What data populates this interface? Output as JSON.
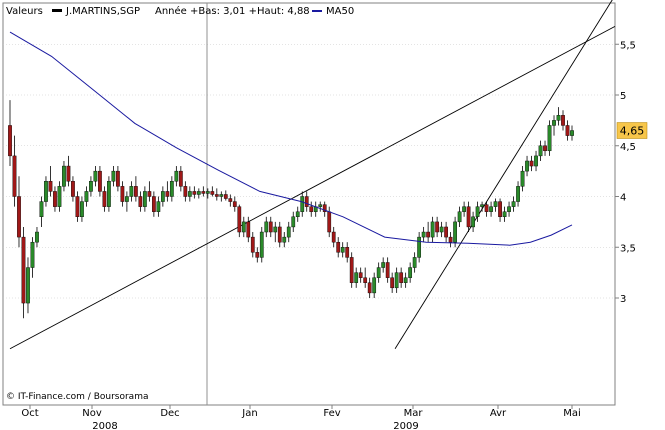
{
  "legend": {
    "label_valeurs": "Valeurs",
    "ticker": "J.MARTINS,SGP",
    "range_text": "Année +Bas: 3,01 +Haut: 4,88",
    "ma_label": "MA50"
  },
  "credit": "© IT-Finance.com / Boursorama",
  "last_price_label": "4,65",
  "colors": {
    "up": "#2a8a2a",
    "down": "#a01818",
    "ma": "#1a1aa0",
    "bg": "#ffffff",
    "price_badge": "#f7c64a",
    "grid": "#c8c8c8"
  },
  "chart_data": {
    "type": "candlestick",
    "ylim": [
      2.6,
      5.8
    ],
    "yticks": [
      3,
      3.5,
      4,
      4.5,
      5,
      5.5
    ],
    "ytick_labels": [
      "3",
      "3,5",
      "4",
      "4,5",
      "5",
      "5,5"
    ],
    "months": [
      "Oct",
      "Nov",
      "Dec",
      "Jan",
      "Fev",
      "Mar",
      "Avr",
      "Mai"
    ],
    "years": [
      "2008",
      "2009"
    ],
    "last_price": 4.65,
    "ohlc": [
      [
        4.7,
        4.95,
        4.3,
        4.4
      ],
      [
        4.4,
        4.6,
        3.9,
        4.0
      ],
      [
        4.0,
        4.2,
        3.5,
        3.6
      ],
      [
        3.6,
        3.7,
        2.8,
        2.95
      ],
      [
        2.95,
        3.4,
        2.85,
        3.3
      ],
      [
        3.3,
        3.6,
        3.2,
        3.55
      ],
      [
        3.55,
        3.7,
        3.5,
        3.65
      ],
      [
        3.8,
        4.0,
        3.7,
        3.95
      ],
      [
        3.95,
        4.2,
        3.9,
        4.15
      ],
      [
        4.15,
        4.3,
        4.0,
        4.05
      ],
      [
        4.05,
        4.1,
        3.85,
        3.9
      ],
      [
        3.9,
        4.15,
        3.85,
        4.1
      ],
      [
        4.1,
        4.35,
        4.05,
        4.3
      ],
      [
        4.3,
        4.4,
        4.1,
        4.15
      ],
      [
        4.15,
        4.2,
        3.95,
        4.0
      ],
      [
        4.0,
        4.05,
        3.75,
        3.8
      ],
      [
        3.8,
        4.0,
        3.75,
        3.95
      ],
      [
        3.95,
        4.1,
        3.9,
        4.05
      ],
      [
        4.05,
        4.2,
        4.0,
        4.15
      ],
      [
        4.15,
        4.3,
        4.1,
        4.25
      ],
      [
        4.25,
        4.3,
        4.0,
        4.05
      ],
      [
        4.05,
        4.1,
        3.85,
        3.9
      ],
      [
        3.9,
        4.2,
        3.85,
        4.15
      ],
      [
        4.15,
        4.3,
        4.1,
        4.25
      ],
      [
        4.25,
        4.3,
        4.05,
        4.1
      ],
      [
        4.1,
        4.15,
        3.9,
        3.95
      ],
      [
        3.95,
        4.05,
        3.85,
        4.0
      ],
      [
        4.0,
        4.15,
        3.95,
        4.1
      ],
      [
        4.1,
        4.2,
        3.95,
        4.0
      ],
      [
        4.0,
        4.05,
        3.85,
        3.9
      ],
      [
        3.9,
        4.1,
        3.85,
        4.05
      ],
      [
        4.05,
        4.15,
        3.95,
        4.0
      ],
      [
        4.0,
        4.05,
        3.8,
        3.85
      ],
      [
        3.85,
        4.0,
        3.8,
        3.95
      ],
      [
        3.95,
        4.1,
        3.9,
        4.05
      ],
      [
        4.05,
        4.15,
        3.95,
        4.0
      ],
      [
        4.0,
        4.2,
        3.95,
        4.15
      ],
      [
        4.15,
        4.3,
        4.1,
        4.25
      ],
      [
        4.25,
        4.3,
        4.05,
        4.1
      ],
      [
        4.1,
        4.15,
        3.95,
        4.0
      ],
      [
        4.0,
        4.1,
        3.95,
        4.05
      ],
      [
        4.05,
        4.1,
        3.98,
        4.02
      ],
      [
        4.02,
        4.08,
        3.98,
        4.05
      ],
      [
        4.05,
        4.1,
        4.0,
        4.03
      ],
      [
        4.03,
        4.08,
        3.98,
        4.05
      ],
      [
        4.05,
        4.1,
        4.0,
        4.02
      ],
      [
        4.02,
        4.08,
        3.96,
        4.0
      ],
      [
        4.0,
        4.05,
        3.95,
        4.02
      ],
      [
        4.02,
        4.06,
        3.96,
        3.98
      ],
      [
        3.98,
        4.02,
        3.9,
        3.95
      ],
      [
        3.95,
        4.0,
        3.85,
        3.9
      ],
      [
        3.9,
        3.92,
        3.6,
        3.65
      ],
      [
        3.65,
        3.8,
        3.6,
        3.75
      ],
      [
        3.75,
        3.8,
        3.55,
        3.6
      ],
      [
        3.6,
        3.65,
        3.4,
        3.45
      ],
      [
        3.45,
        3.5,
        3.35,
        3.4
      ],
      [
        3.4,
        3.7,
        3.35,
        3.65
      ],
      [
        3.65,
        3.8,
        3.6,
        3.75
      ],
      [
        3.75,
        3.8,
        3.6,
        3.65
      ],
      [
        3.65,
        3.75,
        3.55,
        3.7
      ],
      [
        3.7,
        3.75,
        3.5,
        3.55
      ],
      [
        3.55,
        3.65,
        3.5,
        3.6
      ],
      [
        3.6,
        3.75,
        3.55,
        3.7
      ],
      [
        3.7,
        3.85,
        3.65,
        3.8
      ],
      [
        3.8,
        3.9,
        3.75,
        3.85
      ],
      [
        3.85,
        4.05,
        3.8,
        4.0
      ],
      [
        4.0,
        4.05,
        3.85,
        3.9
      ],
      [
        3.9,
        3.95,
        3.8,
        3.85
      ],
      [
        3.85,
        3.95,
        3.8,
        3.9
      ],
      [
        3.9,
        3.95,
        3.85,
        3.92
      ],
      [
        3.92,
        3.95,
        3.8,
        3.85
      ],
      [
        3.85,
        3.9,
        3.6,
        3.65
      ],
      [
        3.65,
        3.7,
        3.5,
        3.55
      ],
      [
        3.55,
        3.6,
        3.4,
        3.45
      ],
      [
        3.45,
        3.55,
        3.4,
        3.5
      ],
      [
        3.5,
        3.55,
        3.35,
        3.4
      ],
      [
        3.4,
        3.45,
        3.1,
        3.15
      ],
      [
        3.15,
        3.3,
        3.1,
        3.25
      ],
      [
        3.25,
        3.3,
        3.15,
        3.2
      ],
      [
        3.2,
        3.3,
        3.1,
        3.15
      ],
      [
        3.15,
        3.2,
        3.0,
        3.05
      ],
      [
        3.05,
        3.25,
        3.0,
        3.2
      ],
      [
        3.2,
        3.35,
        3.15,
        3.3
      ],
      [
        3.3,
        3.4,
        3.25,
        3.35
      ],
      [
        3.35,
        3.4,
        3.15,
        3.2
      ],
      [
        3.2,
        3.25,
        3.05,
        3.1
      ],
      [
        3.1,
        3.3,
        3.05,
        3.25
      ],
      [
        3.25,
        3.3,
        3.1,
        3.15
      ],
      [
        3.15,
        3.25,
        3.1,
        3.2
      ],
      [
        3.2,
        3.35,
        3.15,
        3.3
      ],
      [
        3.3,
        3.45,
        3.25,
        3.4
      ],
      [
        3.4,
        3.65,
        3.35,
        3.6
      ],
      [
        3.6,
        3.7,
        3.55,
        3.65
      ],
      [
        3.65,
        3.75,
        3.55,
        3.6
      ],
      [
        3.6,
        3.8,
        3.55,
        3.75
      ],
      [
        3.75,
        3.8,
        3.6,
        3.65
      ],
      [
        3.65,
        3.75,
        3.6,
        3.7
      ],
      [
        3.7,
        3.75,
        3.55,
        3.6
      ],
      [
        3.6,
        3.65,
        3.5,
        3.55
      ],
      [
        3.55,
        3.8,
        3.5,
        3.75
      ],
      [
        3.75,
        3.9,
        3.7,
        3.85
      ],
      [
        3.85,
        3.95,
        3.8,
        3.9
      ],
      [
        3.9,
        3.95,
        3.65,
        3.7
      ],
      [
        3.7,
        3.85,
        3.65,
        3.8
      ],
      [
        3.8,
        3.95,
        3.75,
        3.9
      ],
      [
        3.9,
        3.95,
        3.85,
        3.92
      ],
      [
        3.92,
        3.95,
        3.8,
        3.85
      ],
      [
        3.85,
        3.95,
        3.8,
        3.9
      ],
      [
        3.9,
        3.98,
        3.85,
        3.95
      ],
      [
        3.95,
        3.98,
        3.75,
        3.8
      ],
      [
        3.8,
        3.9,
        3.75,
        3.85
      ],
      [
        3.85,
        3.95,
        3.8,
        3.9
      ],
      [
        3.9,
        4.0,
        3.85,
        3.95
      ],
      [
        3.95,
        4.15,
        3.9,
        4.1
      ],
      [
        4.1,
        4.3,
        4.05,
        4.25
      ],
      [
        4.25,
        4.4,
        4.2,
        4.35
      ],
      [
        4.35,
        4.4,
        4.25,
        4.3
      ],
      [
        4.3,
        4.45,
        4.25,
        4.4
      ],
      [
        4.4,
        4.55,
        4.35,
        4.5
      ],
      [
        4.5,
        4.55,
        4.4,
        4.45
      ],
      [
        4.45,
        4.75,
        4.4,
        4.7
      ],
      [
        4.7,
        4.8,
        4.6,
        4.75
      ],
      [
        4.75,
        4.88,
        4.7,
        4.8
      ],
      [
        4.8,
        4.85,
        4.65,
        4.7
      ],
      [
        4.7,
        4.75,
        4.55,
        4.6
      ],
      [
        4.6,
        4.7,
        4.55,
        4.65
      ]
    ],
    "ma50": [
      [
        0,
        5.62
      ],
      [
        20,
        5.38
      ],
      [
        40,
        5.05
      ],
      [
        60,
        4.72
      ],
      [
        80,
        4.48
      ],
      [
        100,
        4.26
      ],
      [
        120,
        4.05
      ],
      [
        140,
        3.95
      ],
      [
        160,
        3.8
      ],
      [
        180,
        3.6
      ],
      [
        200,
        3.55
      ],
      [
        220,
        3.54
      ],
      [
        240,
        3.52
      ],
      [
        250,
        3.55
      ],
      [
        260,
        3.62
      ],
      [
        270,
        3.72
      ]
    ],
    "trend_lines": [
      [
        [
          0,
          2.5
        ],
        [
          270,
          5.45
        ]
      ],
      [
        [
          185,
          2.5
        ],
        [
          270,
          5.3
        ]
      ]
    ]
  }
}
